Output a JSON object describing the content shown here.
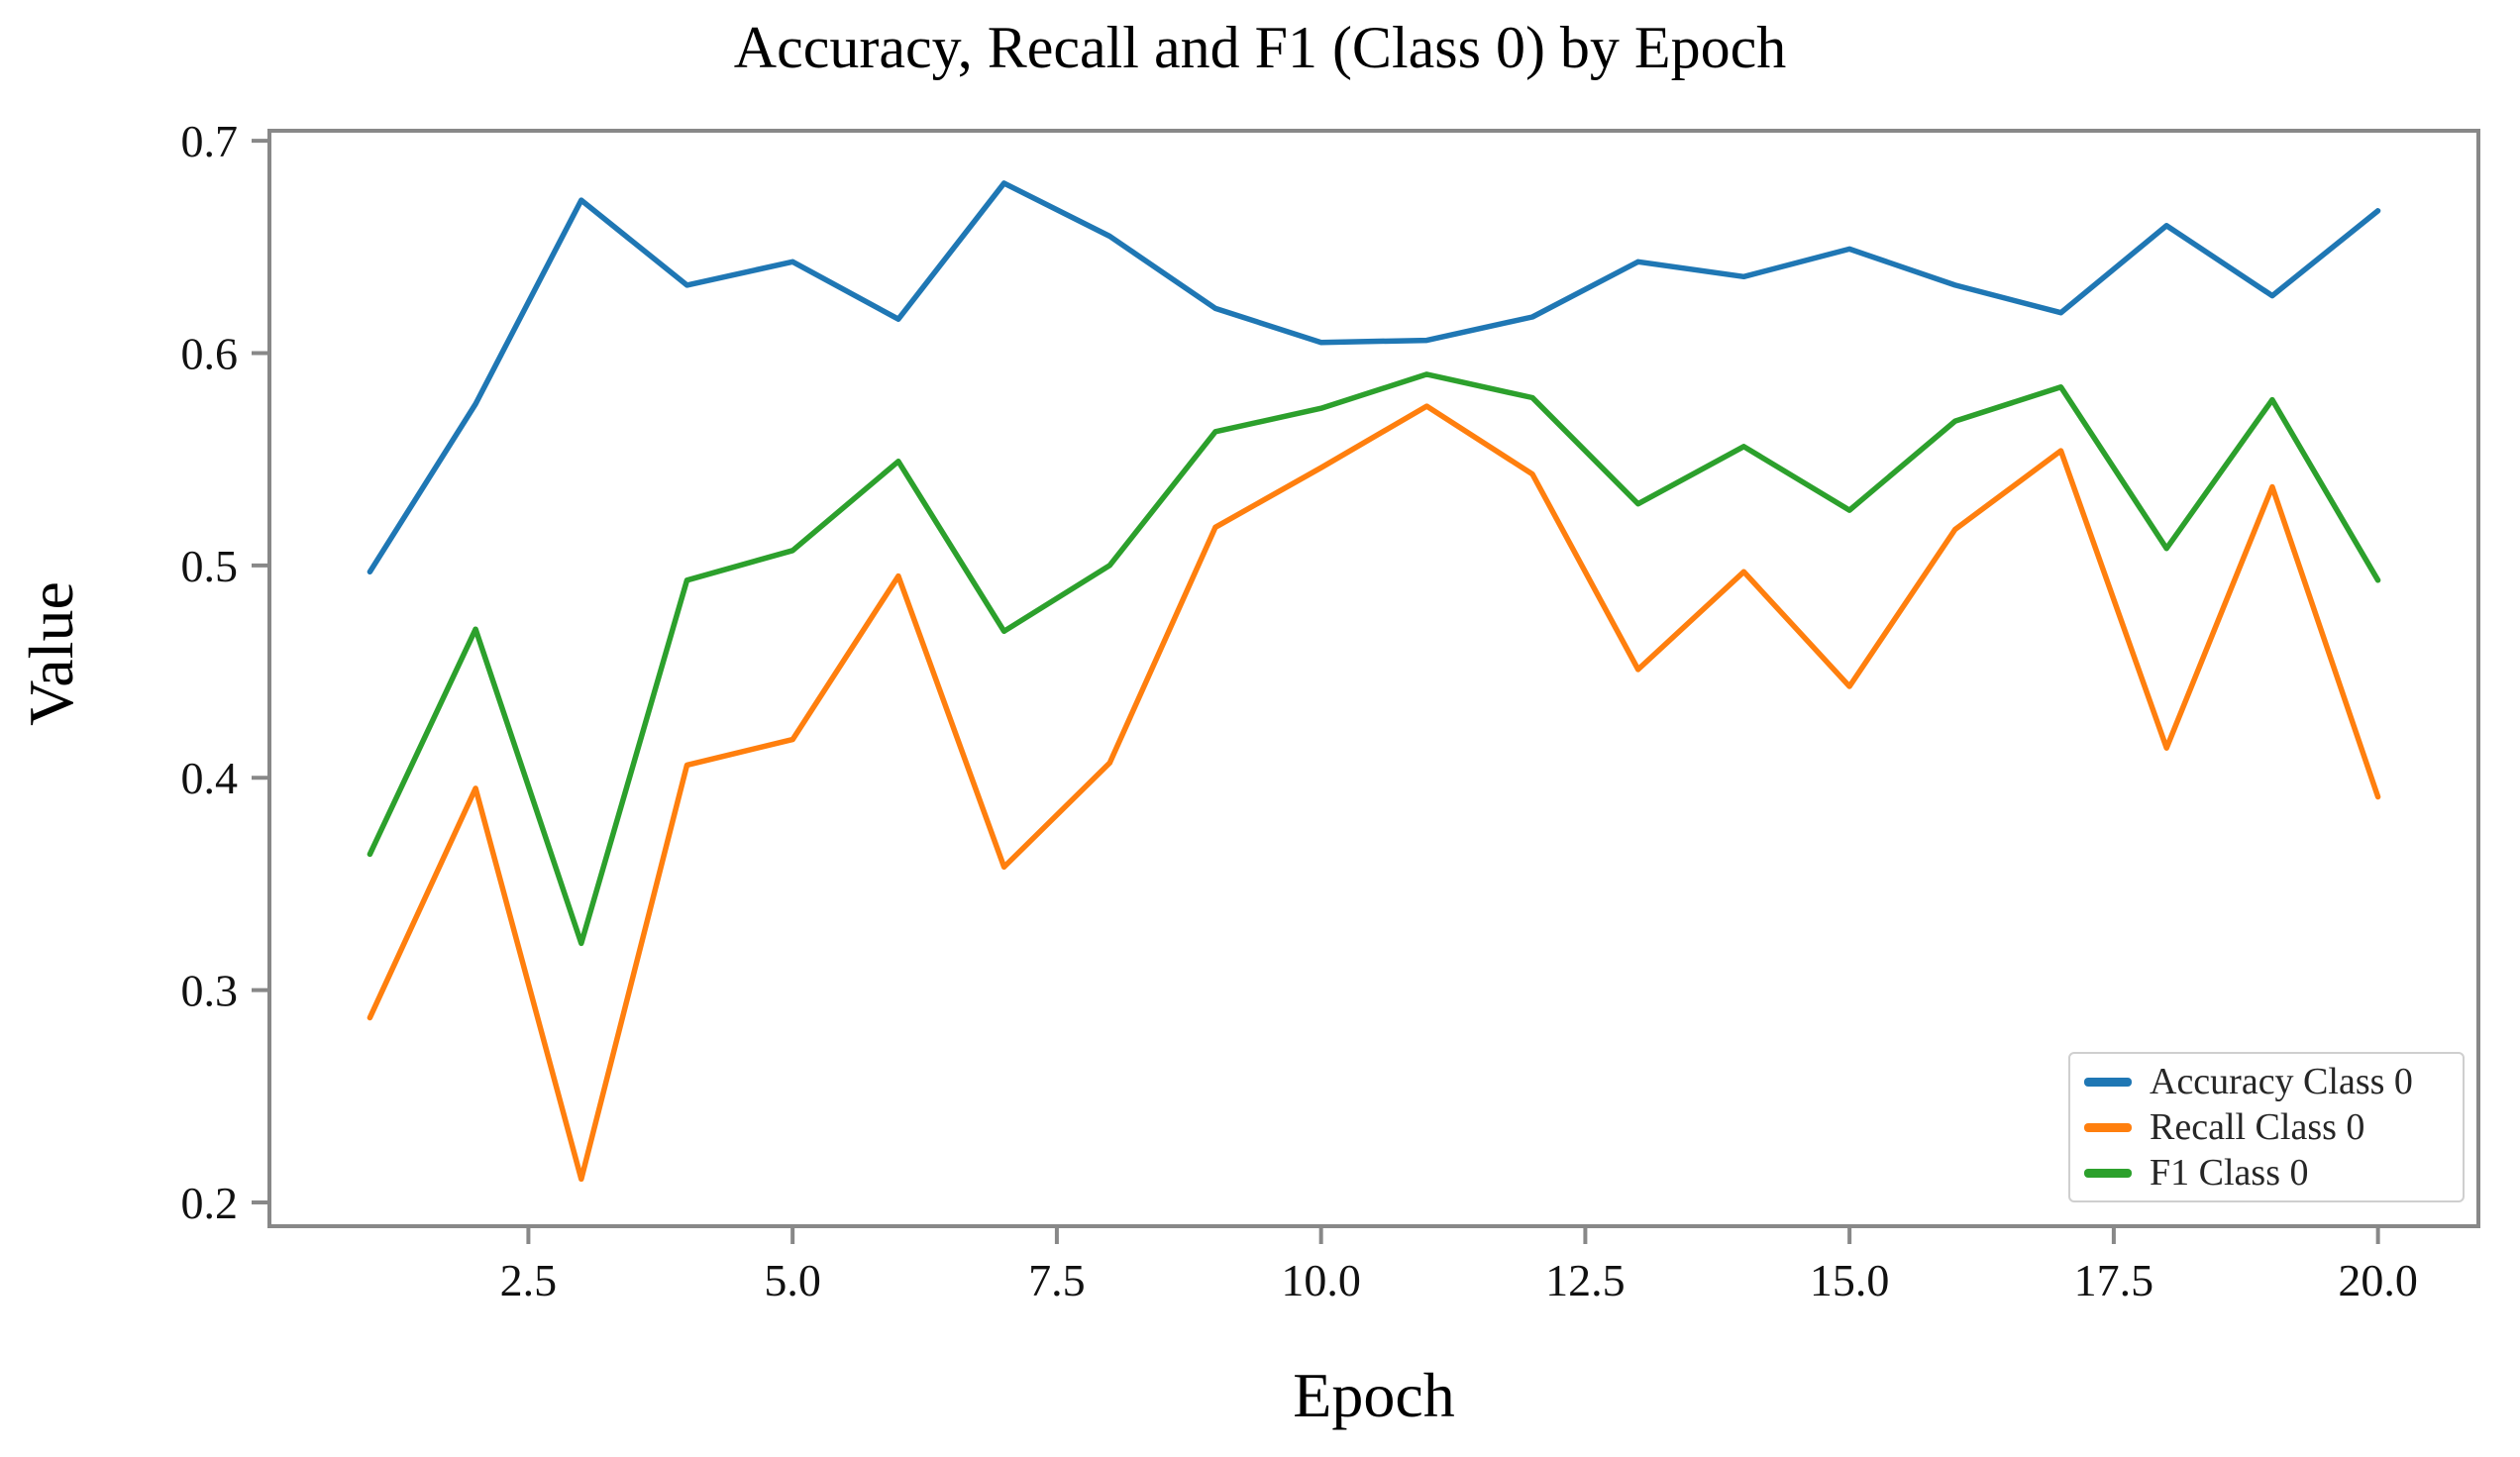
{
  "page": {
    "background": "#ffffff"
  },
  "chart": {
    "title": "Accuracy, Recall and F1 (Class 0) by Epoch",
    "xlabel": "Epoch",
    "ylabel": "Value"
  },
  "legend": {
    "items": [
      {
        "label": "Accuracy Class 0",
        "color": "#1f77b4"
      },
      {
        "label": "Recall Class 0",
        "color": "#ff7f0e"
      },
      {
        "label": "F1 Class 0",
        "color": "#2ca02c"
      }
    ]
  },
  "chart_data": {
    "type": "line",
    "title": "Accuracy, Recall and F1 (Class 0) by Epoch",
    "xlabel": "Epoch",
    "ylabel": "Value",
    "grid": false,
    "legend_position": "lower right",
    "x": [
      1,
      2,
      3,
      4,
      5,
      6,
      7,
      8,
      9,
      10,
      11,
      12,
      13,
      14,
      15,
      16,
      17,
      18,
      19,
      20
    ],
    "series": [
      {
        "name": "Accuracy Class 0",
        "color": "#1f77b4",
        "values": [
          0.497,
          0.576,
          0.672,
          0.632,
          0.643,
          0.616,
          0.68,
          0.655,
          0.621,
          0.605,
          0.606,
          0.617,
          0.643,
          0.636,
          0.649,
          0.632,
          0.619,
          0.66,
          0.627,
          0.667
        ]
      },
      {
        "name": "Recall Class 0",
        "color": "#ff7f0e",
        "values": [
          0.287,
          0.395,
          0.211,
          0.406,
          0.418,
          0.495,
          0.358,
          0.407,
          0.518,
          0.546,
          0.575,
          0.543,
          0.451,
          0.497,
          0.443,
          0.517,
          0.554,
          0.414,
          0.537,
          0.391
        ]
      },
      {
        "name": "F1 Class 0",
        "color": "#2ca02c",
        "values": [
          0.364,
          0.47,
          0.322,
          0.493,
          0.507,
          0.549,
          0.469,
          0.5,
          0.563,
          0.574,
          0.59,
          0.579,
          0.529,
          0.556,
          0.526,
          0.568,
          0.584,
          0.508,
          0.578,
          0.493
        ]
      }
    ],
    "xlim": [
      0.05,
      20.95
    ],
    "ylim": [
      0.1888,
      0.7047
    ],
    "xticks": [
      2.5,
      5.0,
      7.5,
      10.0,
      12.5,
      15.0,
      17.5,
      20.0
    ],
    "xtick_labels": [
      "2.5",
      "5.0",
      "7.5",
      "10.0",
      "12.5",
      "15.0",
      "17.5",
      "20.0"
    ],
    "yticks": [
      0.2,
      0.3,
      0.4,
      0.5,
      0.6,
      0.7
    ],
    "ytick_labels": [
      "0.2",
      "0.3",
      "0.4",
      "0.5",
      "0.6",
      "0.7"
    ]
  }
}
